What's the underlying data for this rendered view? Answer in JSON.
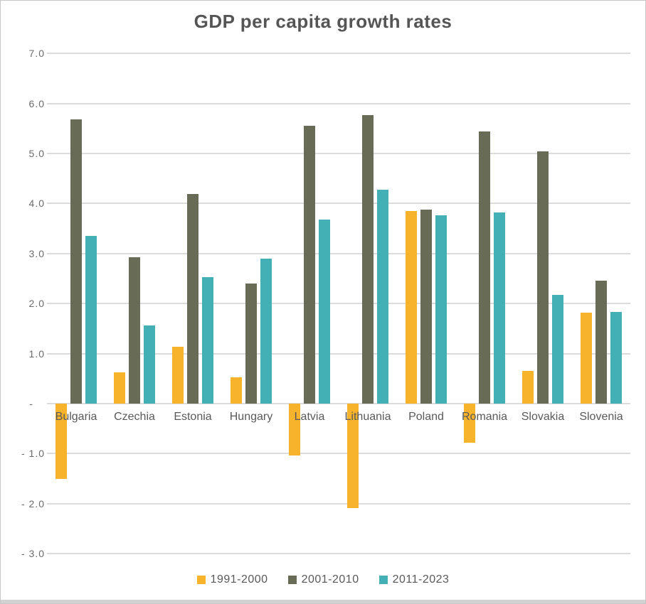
{
  "title": "GDP per capita growth rates",
  "chart_data": {
    "type": "bar",
    "title": "GDP per capita growth rates",
    "categories": [
      "Bulgaria",
      "Czechia",
      "Estonia",
      "Hungary",
      "Latvia",
      "Lithuania",
      "Poland",
      "Romania",
      "Slovakia",
      "Slovenia"
    ],
    "series": [
      {
        "name": "1991-2000",
        "color": "#F7B32C",
        "values": [
          -1.51,
          0.63,
          1.13,
          0.52,
          -1.04,
          -2.09,
          3.85,
          -0.78,
          0.66,
          1.82
        ]
      },
      {
        "name": "2001-2010",
        "color": "#686C57",
        "values": [
          5.68,
          2.93,
          4.19,
          2.4,
          5.56,
          5.76,
          3.88,
          5.44,
          5.04,
          2.46
        ]
      },
      {
        "name": "2011-2023",
        "color": "#42B0B4",
        "values": [
          3.35,
          1.56,
          2.53,
          2.9,
          3.68,
          4.27,
          3.77,
          3.82,
          2.17,
          1.83
        ]
      }
    ],
    "ylim": [
      -3.0,
      7.0
    ],
    "yticks": [
      {
        "value": 7,
        "label": "7.0"
      },
      {
        "value": 6,
        "label": "6.0"
      },
      {
        "value": 5,
        "label": "5.0"
      },
      {
        "value": 4,
        "label": "4.0"
      },
      {
        "value": 3,
        "label": "3.0"
      },
      {
        "value": 2,
        "label": "2.0"
      },
      {
        "value": 1,
        "label": "1.0"
      },
      {
        "value": 0,
        "label": "-"
      },
      {
        "value": -1,
        "label": "- 1.0"
      },
      {
        "value": -2,
        "label": "- 2.0"
      },
      {
        "value": -3,
        "label": "- 3.0"
      }
    ],
    "grid": true,
    "legend_position": "bottom"
  },
  "legend": {
    "items": [
      "1991-2000",
      "2001-2010",
      "2011-2023"
    ]
  },
  "colors": {
    "series_1991_2000": "#F7B32C",
    "series_2001_2010": "#686C57",
    "series_2011_2023": "#42B0B4",
    "gridline": "#DBDBDB",
    "title_text": "#555555",
    "axis_text": "#6B6B6B",
    "category_text": "#595959",
    "outer_border": "#C7C7C7",
    "bottom_strip": "#D2D2D2"
  }
}
